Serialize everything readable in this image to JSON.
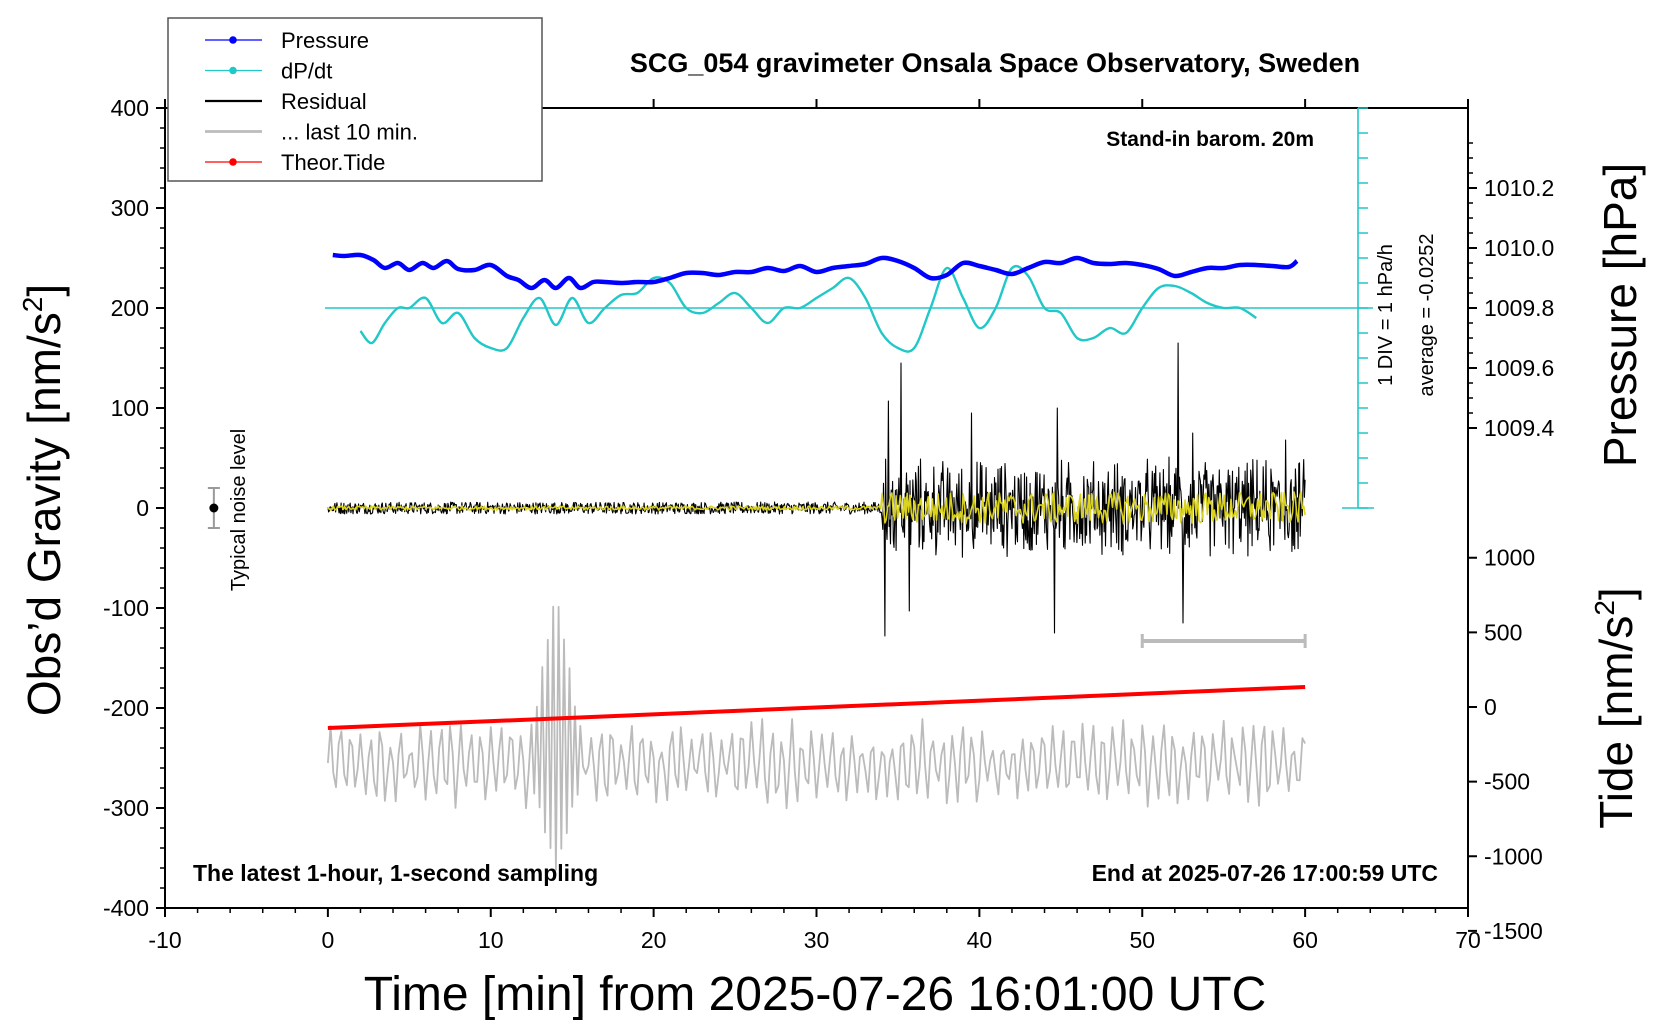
{
  "chart_data": {
    "type": "line",
    "title": "SCG_054 gravimeter Onsala Space Observatory, Sweden",
    "xlabel": "Time [min] from 2025-07-26 16:01:00 UTC",
    "ylabel_left_text": "Obs’d Gravity [nm/s",
    "ylabel_left_sup": "2",
    "ylabel_left_close": "]",
    "ylabel_right_top": "Pressure [hPa]",
    "ylabel_right_bottom_text": "Tide [nm/s",
    "ylabel_right_bottom_sup": "2",
    "ylabel_right_bottom_close": "]",
    "xlim": [
      -10,
      70
    ],
    "ylim": [
      -400,
      400
    ],
    "x_ticks": [
      -10,
      0,
      10,
      20,
      30,
      40,
      50,
      60,
      70
    ],
    "x_tick_labels": [
      "-10",
      "0",
      "10",
      "20",
      "30",
      "40",
      "50",
      "60",
      "70"
    ],
    "y_ticks": [
      -400,
      -300,
      -200,
      -100,
      0,
      100,
      200,
      300,
      400
    ],
    "y_tick_labels": [
      "-400",
      "-300",
      "-200",
      "-100",
      "0",
      "100",
      "200",
      "300",
      "400"
    ],
    "pressure_axis": {
      "ticks": [
        1009.4,
        1009.6,
        1009.8,
        1010.0,
        1010.2
      ],
      "tick_labels": [
        "1009.4",
        "1009.6",
        "1009.8",
        "1010.0",
        "1010.2"
      ],
      "ref_value": 1009.8,
      "units_per_hpa": 300
    },
    "tide_axis": {
      "ticks": [
        -1500,
        -1000,
        -500,
        0,
        500,
        1000
      ],
      "tick_labels": [
        "-1500",
        "-1000",
        "-500",
        "0",
        "500",
        "1000"
      ],
      "gravity_at_zero": -199,
      "units_per_gravity": 6.7
    },
    "legend_position": "top-left",
    "legend": [
      {
        "label": "Pressure",
        "color": "#0000ff",
        "marker": "dot"
      },
      {
        "label": "dP/dt",
        "color": "#22c7c7",
        "marker": "dot"
      },
      {
        "label": "Residual",
        "color": "#000000",
        "marker": "line"
      },
      {
        "label": "... last 10 min.",
        "color": "#bbbbbb",
        "marker": "line"
      },
      {
        "label": "Theor.Tide",
        "color": "#ff0000",
        "marker": "dot"
      }
    ],
    "annotations": {
      "barometer": "Stand-in barom. 20m",
      "sampling": "The latest 1-hour, 1-second sampling",
      "end_time": "End at 2025-07-26 17:00:59 UTC",
      "noise": "Typical noise level",
      "div_scale": "1 DIV = 1 hPa/h",
      "average": "average = -0.0252"
    },
    "colors": {
      "pressure": "#0000ff",
      "dpdt": "#22c7c7",
      "residual": "#000000",
      "residual_filtered": "#d9d21f",
      "last10": "#bbbbbb",
      "tide": "#ff0000",
      "scale_bar": "#bbbbbb"
    },
    "series": [
      {
        "name": "Pressure",
        "x": [
          0.3,
          1,
          2,
          2.8,
          3.5,
          4.3,
          5,
          5.8,
          6.5,
          7.3,
          8,
          9,
          10,
          11,
          11.7,
          12.5,
          13.3,
          14,
          14.8,
          15.5,
          16.3,
          17,
          18,
          19,
          20,
          21,
          22,
          23,
          24,
          25,
          26,
          27,
          28,
          29,
          30,
          31,
          32,
          33,
          34,
          35,
          36,
          37,
          38,
          39,
          40,
          41,
          42,
          43,
          44,
          45,
          46,
          47,
          48,
          49,
          50,
          51,
          52,
          53,
          54,
          55,
          56,
          57,
          58,
          59,
          59.5
        ],
        "y": [
          253,
          252,
          253,
          248,
          240,
          245,
          238,
          245,
          240,
          247,
          239,
          238,
          243,
          232,
          228,
          220,
          228,
          220,
          230,
          220,
          226,
          226,
          225,
          226,
          226,
          230,
          235,
          235,
          233,
          236,
          236,
          240,
          237,
          242,
          236,
          240,
          242,
          244,
          250,
          247,
          240,
          230,
          233,
          245,
          242,
          238,
          234,
          240,
          246,
          245,
          250,
          245,
          244,
          245,
          243,
          239,
          232,
          236,
          240,
          240,
          243,
          243,
          242,
          241,
          247
        ]
      },
      {
        "name": "dP/dt",
        "x": [
          2,
          2.7,
          3.5,
          4.3,
          5,
          6,
          7,
          8,
          9,
          10,
          11,
          12,
          13,
          14,
          15,
          16,
          17,
          18,
          19,
          20,
          21,
          22,
          23,
          24,
          25,
          26,
          27,
          28,
          29,
          30,
          31,
          32,
          33,
          34,
          35,
          36,
          37,
          38,
          39,
          40,
          41,
          42,
          43,
          44,
          45,
          46,
          47,
          48,
          49,
          50,
          51,
          52,
          53,
          54,
          55,
          56,
          57
        ],
        "y": [
          177,
          165,
          185,
          200,
          200,
          210,
          185,
          195,
          170,
          160,
          160,
          190,
          210,
          183,
          210,
          185,
          200,
          213,
          215,
          230,
          225,
          200,
          195,
          205,
          215,
          200,
          185,
          200,
          200,
          210,
          220,
          230,
          210,
          175,
          160,
          160,
          200,
          240,
          210,
          180,
          200,
          240,
          232,
          200,
          195,
          170,
          170,
          180,
          175,
          200,
          220,
          222,
          215,
          205,
          200,
          200,
          190
        ]
      },
      {
        "name": "Theor.Tide",
        "x": [
          0,
          60
        ],
        "y": [
          -220,
          -179
        ]
      }
    ],
    "residual_envelope": {
      "quiet": {
        "x": [
          0,
          34
        ],
        "amplitude": 6
      },
      "active": {
        "x": [
          34,
          60
        ],
        "amplitude": 55
      },
      "spikes": [
        {
          "x": 34.2,
          "y": -128
        },
        {
          "x": 34.4,
          "y": 107
        },
        {
          "x": 35.2,
          "y": 145
        },
        {
          "x": 35.7,
          "y": -103
        },
        {
          "x": 39.5,
          "y": 95
        },
        {
          "x": 44.6,
          "y": -125
        },
        {
          "x": 44.8,
          "y": 100
        },
        {
          "x": 52.2,
          "y": 165
        },
        {
          "x": 52.5,
          "y": -115
        },
        {
          "x": 53.1,
          "y": 75
        },
        {
          "x": 58.8,
          "y": 68
        }
      ]
    },
    "last10_envelope": {
      "x": [
        0,
        60
      ],
      "center": -255,
      "amplitude": 40,
      "burst": {
        "x": 14,
        "y_max": -83,
        "y_min": -362
      }
    },
    "scale_bar": {
      "x": [
        50,
        60
      ],
      "y": -133
    },
    "noise_bar": {
      "x": -7,
      "y": 0,
      "half_range": 20
    }
  }
}
